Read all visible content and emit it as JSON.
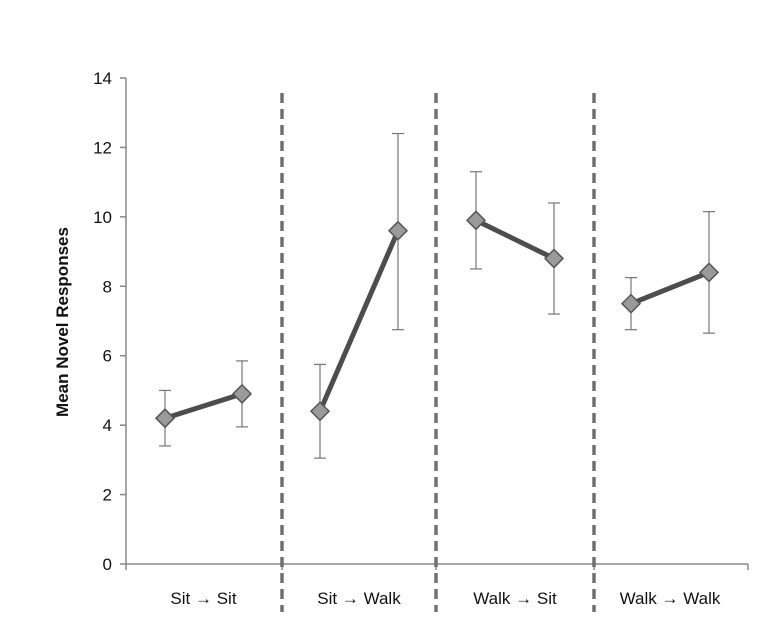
{
  "chart_data": {
    "type": "line",
    "title": "",
    "xlabel": "",
    "ylabel": "Mean Novel Responses",
    "ylim": [
      0,
      14
    ],
    "yticks": [
      0,
      2,
      4,
      6,
      8,
      10,
      12,
      14
    ],
    "grid": false,
    "legend": "none",
    "arrow_glyph": "→",
    "groups": [
      {
        "from": "Sit",
        "to": "Sit",
        "values": [
          4.2,
          4.9
        ],
        "error_low": [
          3.4,
          3.95
        ],
        "error_high": [
          5.0,
          5.85
        ]
      },
      {
        "from": "Sit",
        "to": "Walk",
        "values": [
          4.4,
          9.6
        ],
        "error_low": [
          3.05,
          6.75
        ],
        "error_high": [
          5.75,
          12.4
        ]
      },
      {
        "from": "Walk",
        "to": "Sit",
        "values": [
          9.9,
          8.8
        ],
        "error_low": [
          8.5,
          7.2
        ],
        "error_high": [
          11.3,
          10.4
        ]
      },
      {
        "from": "Walk",
        "to": "Walk",
        "values": [
          7.5,
          8.4
        ],
        "error_low": [
          6.75,
          6.65
        ],
        "error_high": [
          8.25,
          10.15
        ]
      }
    ],
    "colors": {
      "line": "#4d4d4d",
      "marker_fill": "#9a9a9a",
      "marker_stroke": "#555555",
      "error_bar": "#777777",
      "separator": "#707070",
      "axis": "#888888"
    }
  }
}
